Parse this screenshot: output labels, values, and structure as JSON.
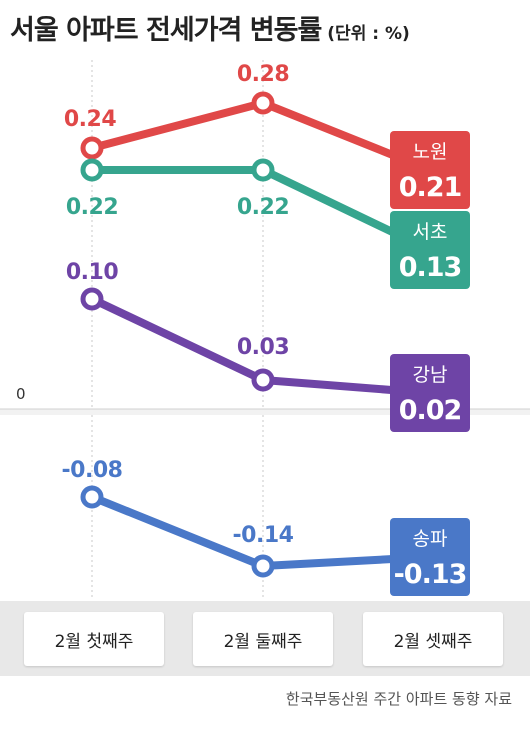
{
  "header": {
    "title": "서울 아파트 전세가격 변동률",
    "unit": "(단위 : %)"
  },
  "source": "한국부동산원 주간 아파트 동향 자료",
  "zero_label": "0",
  "chart_data": {
    "type": "line",
    "title": "서울 아파트 전세가격 변동률",
    "subtitle": "(단위 : %)",
    "categories": [
      "2월 첫째주",
      "2월 둘째주",
      "2월 셋째주"
    ],
    "series": [
      {
        "name": "노원",
        "values": [
          0.24,
          0.28,
          0.21
        ],
        "color": "#e04848",
        "point_labels": [
          "0.24",
          "0.28",
          "0.21"
        ]
      },
      {
        "name": "서초",
        "values": [
          0.22,
          0.22,
          0.13
        ],
        "color": "#36a58e",
        "point_labels": [
          "0.22",
          "0.22",
          "0.13"
        ]
      },
      {
        "name": "강남",
        "values": [
          0.1,
          0.03,
          0.02
        ],
        "color": "#6e44a6",
        "point_labels": [
          "0.10",
          "0.03",
          "0.02"
        ]
      },
      {
        "name": "송파",
        "values": [
          -0.08,
          -0.14,
          -0.13
        ],
        "color": "#4a78c8",
        "point_labels": [
          "-0.08",
          "-0.14",
          "-0.13"
        ]
      }
    ]
  }
}
